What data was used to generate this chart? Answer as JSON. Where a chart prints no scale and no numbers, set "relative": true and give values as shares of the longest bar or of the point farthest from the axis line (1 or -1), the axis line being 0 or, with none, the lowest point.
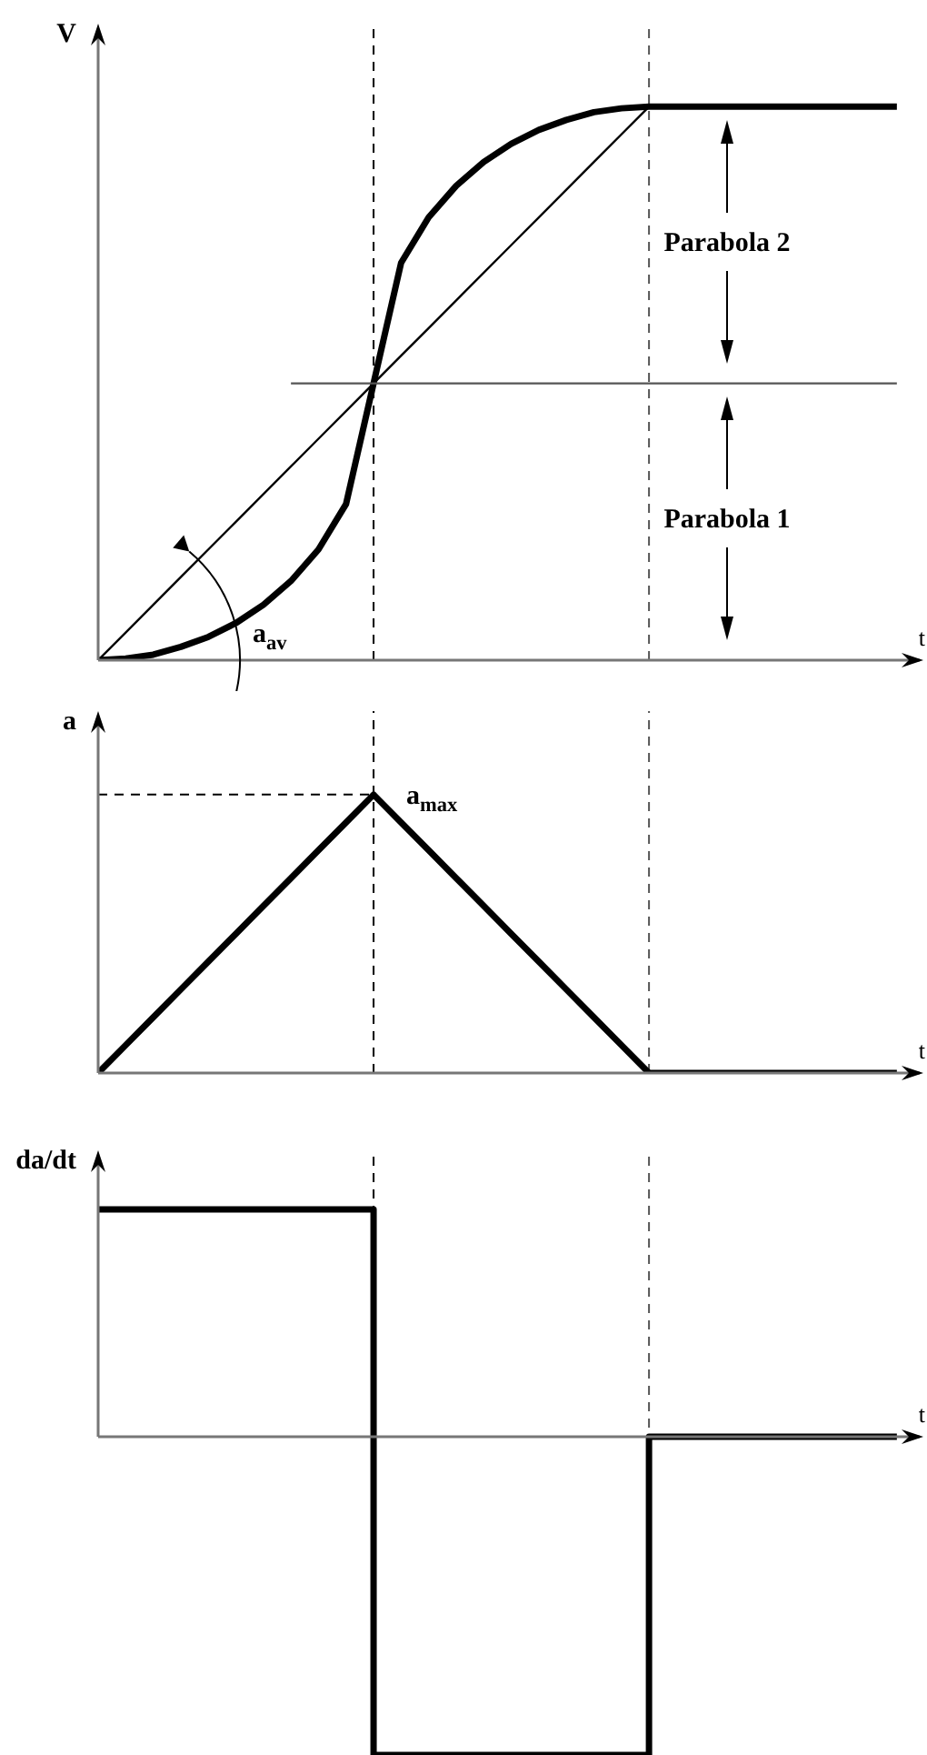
{
  "chart_data": [
    {
      "type": "line",
      "relative": true,
      "ylabel": "V",
      "xlabel": "t",
      "categories": [
        null,
        null,
        null,
        null,
        null,
        null,
        null,
        null,
        null,
        null,
        null,
        null,
        null,
        null,
        null,
        null,
        null,
        null,
        null,
        null,
        null,
        null,
        null,
        null,
        null,
        null,
        null,
        null,
        null,
        null
      ],
      "series": [
        {
          "color": "#000000",
          "values": [
            0,
            0.003,
            0.01,
            0.024,
            0.042,
            0.067,
            0.1,
            0.143,
            0.2,
            0.282,
            0.5,
            0.718,
            0.8,
            0.857,
            0.9,
            0.933,
            0.958,
            0.976,
            0.99,
            0.997,
            1,
            1,
            1,
            1,
            1,
            1,
            1,
            1,
            1,
            1
          ]
        },
        {
          "color": "#000000",
          "values": [
            0,
            0.05,
            0.1,
            0.15,
            0.2,
            0.25,
            0.3,
            0.35,
            0.4,
            0.45,
            0.5,
            0.55,
            0.6,
            0.65,
            0.7,
            0.75,
            0.8,
            0.85,
            0.9,
            0.95,
            1,
            null,
            null,
            null,
            null,
            null,
            null,
            null,
            null,
            null
          ]
        },
        {
          "color": "#555555",
          "values": [
            null,
            null,
            null,
            null,
            null,
            null,
            null,
            0.5,
            0.5,
            0.5,
            0.5,
            0.5,
            0.5,
            0.5,
            0.5,
            0.5,
            0.5,
            0.5,
            0.5,
            0.5,
            0.5,
            0.5,
            0.5,
            0.5,
            0.5,
            0.5,
            0.5,
            0.5,
            0.5,
            0.5
          ]
        }
      ],
      "annotations": [
        "Parabola 2",
        "Parabola 1",
        "a$_{av}$"
      ]
    },
    {
      "type": "line",
      "relative": true,
      "ylabel": "a",
      "xlabel": "t",
      "categories": [
        null,
        null,
        null,
        null,
        null,
        null,
        null,
        null,
        null,
        null,
        null,
        null,
        null,
        null,
        null,
        null,
        null,
        null,
        null,
        null,
        null,
        null,
        null,
        null,
        null,
        null,
        null,
        null,
        null,
        null
      ],
      "series": [
        {
          "color": "#000000",
          "values": [
            0,
            0.1,
            0.2,
            0.3,
            0.4,
            0.5,
            0.6,
            0.7,
            0.8,
            0.9,
            1,
            0.9,
            0.8,
            0.7,
            0.6,
            0.5,
            0.4,
            0.3,
            0.2,
            0.1,
            0,
            0,
            0,
            0,
            0,
            0,
            0,
            0,
            0,
            0
          ]
        }
      ],
      "ref_lines": [
        {
          "axis": "y",
          "value": 1,
          "label": "a$_{max}$",
          "line_style": "dashed",
          "color": "#000000"
        }
      ]
    },
    {
      "type": "step",
      "relative": true,
      "ylabel": "da/dt",
      "xlabel": "t",
      "categories": [
        null,
        null,
        null,
        null,
        null,
        null,
        null,
        null,
        null,
        null,
        null,
        null,
        null,
        null,
        null,
        null,
        null,
        null,
        null,
        null,
        null,
        null,
        null,
        null,
        null,
        null,
        null,
        null,
        null,
        null
      ],
      "series": [
        {
          "color": "#000000",
          "values": [
            0.714,
            0.714,
            0.714,
            0.714,
            0.714,
            0.714,
            0.714,
            0.714,
            0.714,
            0.714,
            -1,
            -1,
            -1,
            -1,
            -1,
            -1,
            -1,
            -1,
            -1,
            -1,
            0,
            0,
            0,
            0,
            0,
            0,
            0,
            0,
            0,
            0
          ]
        }
      ]
    }
  ]
}
